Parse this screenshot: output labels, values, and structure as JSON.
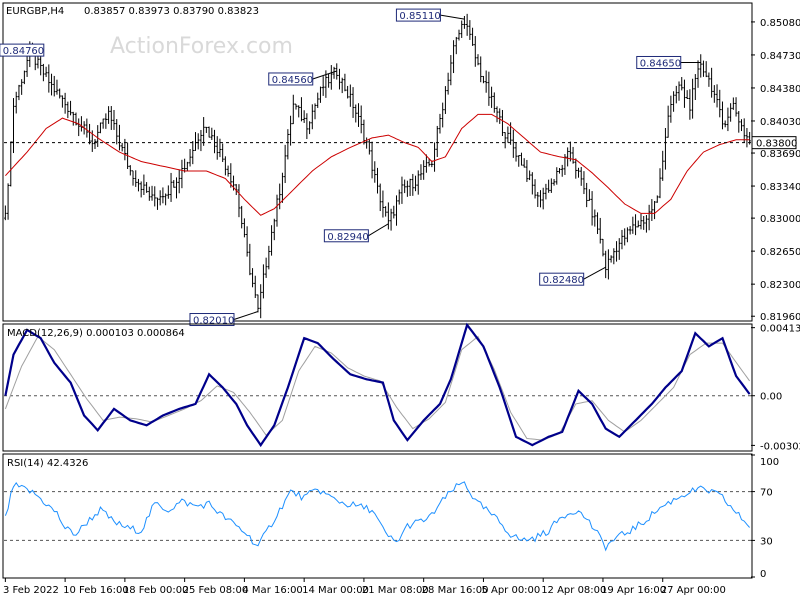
{
  "header": {
    "symbol_timeframe": "EURGBP,H4",
    "ohlc": "0.83857 0.83973 0.83790 0.83823",
    "watermark": "ActionForex.com"
  },
  "colors": {
    "price_bars": "#000000",
    "moving_average": "#cc0000",
    "macd_line": "#00008b",
    "macd_signal": "#a0a0a0",
    "rsi_line": "#1e90ff",
    "level_line": "#555555"
  },
  "chart_data": [
    {
      "type": "bar",
      "panel": "price",
      "title": "EURGBP,H4",
      "y_ticks": [
        "0.85080",
        "0.84730",
        "0.84380",
        "0.84030",
        "0.83690",
        "0.83340",
        "0.83000",
        "0.82650",
        "0.82300",
        "0.81960"
      ],
      "ylim": [
        0.8192,
        0.8527
      ],
      "current_price": "0.83800",
      "current_price_value": 0.838,
      "annotations": [
        {
          "label": "0.84760",
          "value": 0.8476
        },
        {
          "label": "0.84560",
          "value": 0.8456
        },
        {
          "label": "0.85110",
          "value": 0.8511
        },
        {
          "label": "0.84650",
          "value": 0.8465
        },
        {
          "label": "0.82940",
          "value": 0.8294
        },
        {
          "label": "0.82480",
          "value": 0.8248
        },
        {
          "label": "0.82010",
          "value": 0.8201
        }
      ],
      "close_path": [
        [
          0,
          0.83
        ],
        [
          3,
          0.842
        ],
        [
          9,
          0.8476
        ],
        [
          17,
          0.844
        ],
        [
          25,
          0.841
        ],
        [
          32,
          0.838
        ],
        [
          38,
          0.841
        ],
        [
          46,
          0.835
        ],
        [
          54,
          0.832
        ],
        [
          60,
          0.833
        ],
        [
          67,
          0.836
        ],
        [
          73,
          0.84
        ],
        [
          79,
          0.837
        ],
        [
          85,
          0.833
        ],
        [
          89,
          0.826
        ],
        [
          93,
          0.8201
        ],
        [
          97,
          0.827
        ],
        [
          101,
          0.833
        ],
        [
          106,
          0.842
        ],
        [
          111,
          0.84
        ],
        [
          117,
          0.844
        ],
        [
          122,
          0.8456
        ],
        [
          128,
          0.842
        ],
        [
          133,
          0.838
        ],
        [
          137,
          0.833
        ],
        [
          141,
          0.8294
        ],
        [
          146,
          0.833
        ],
        [
          151,
          0.834
        ],
        [
          157,
          0.836
        ],
        [
          161,
          0.842
        ],
        [
          165,
          0.848
        ],
        [
          169,
          0.8511
        ],
        [
          173,
          0.847
        ],
        [
          178,
          0.843
        ],
        [
          184,
          0.839
        ],
        [
          190,
          0.836
        ],
        [
          196,
          0.832
        ],
        [
          202,
          0.834
        ],
        [
          208,
          0.837
        ],
        [
          213,
          0.833
        ],
        [
          218,
          0.829
        ],
        [
          221,
          0.8248
        ],
        [
          225,
          0.827
        ],
        [
          231,
          0.829
        ],
        [
          236,
          0.83
        ],
        [
          240,
          0.832
        ],
        [
          244,
          0.841
        ],
        [
          248,
          0.844
        ],
        [
          252,
          0.842
        ],
        [
          256,
          0.8465
        ],
        [
          260,
          0.844
        ],
        [
          264,
          0.84
        ],
        [
          268,
          0.842
        ],
        [
          272,
          0.839
        ],
        [
          274,
          0.8382
        ]
      ],
      "moving_average": [
        [
          0,
          0.8345
        ],
        [
          8,
          0.837
        ],
        [
          15,
          0.8395
        ],
        [
          21,
          0.8406
        ],
        [
          27,
          0.84
        ],
        [
          34,
          0.8385
        ],
        [
          42,
          0.837
        ],
        [
          50,
          0.836
        ],
        [
          58,
          0.8355
        ],
        [
          66,
          0.835
        ],
        [
          74,
          0.835
        ],
        [
          81,
          0.8342
        ],
        [
          88,
          0.832
        ],
        [
          94,
          0.8303
        ],
        [
          99,
          0.831
        ],
        [
          106,
          0.833
        ],
        [
          113,
          0.835
        ],
        [
          120,
          0.8365
        ],
        [
          127,
          0.8375
        ],
        [
          135,
          0.8385
        ],
        [
          141,
          0.8388
        ],
        [
          147,
          0.838
        ],
        [
          152,
          0.8375
        ],
        [
          157,
          0.836
        ],
        [
          162,
          0.8365
        ],
        [
          168,
          0.8395
        ],
        [
          174,
          0.841
        ],
        [
          179,
          0.841
        ],
        [
          185,
          0.84
        ],
        [
          191,
          0.8385
        ],
        [
          197,
          0.837
        ],
        [
          204,
          0.8365
        ],
        [
          210,
          0.8362
        ],
        [
          216,
          0.8348
        ],
        [
          222,
          0.8332
        ],
        [
          228,
          0.8315
        ],
        [
          234,
          0.8305
        ],
        [
          239,
          0.8305
        ],
        [
          245,
          0.832
        ],
        [
          251,
          0.835
        ],
        [
          257,
          0.837
        ],
        [
          263,
          0.8378
        ],
        [
          269,
          0.8383
        ],
        [
          274,
          0.8383
        ]
      ]
    },
    {
      "type": "line",
      "panel": "macd",
      "title": "MACD(12,26,9) 0.000103 0.000864",
      "y_ticks": [
        "0.004138",
        "0.00",
        "-0.00302"
      ],
      "ylim": [
        -0.0033,
        0.0043
      ],
      "macd": [
        [
          0,
          0.0
        ],
        [
          3,
          0.0025
        ],
        [
          8,
          0.004
        ],
        [
          13,
          0.0035
        ],
        [
          18,
          0.002
        ],
        [
          24,
          0.0008
        ],
        [
          29,
          -0.0012
        ],
        [
          34,
          -0.0021
        ],
        [
          40,
          -0.0008
        ],
        [
          46,
          -0.0015
        ],
        [
          52,
          -0.0018
        ],
        [
          58,
          -0.0012
        ],
        [
          64,
          -0.0008
        ],
        [
          70,
          -0.0005
        ],
        [
          75,
          0.0013
        ],
        [
          80,
          0.0005
        ],
        [
          85,
          -0.0005
        ],
        [
          89,
          -0.0018
        ],
        [
          94,
          -0.003
        ],
        [
          99,
          -0.0018
        ],
        [
          104,
          0.0005
        ],
        [
          110,
          0.0035
        ],
        [
          115,
          0.0032
        ],
        [
          121,
          0.0022
        ],
        [
          127,
          0.0013
        ],
        [
          133,
          0.001
        ],
        [
          139,
          0.0008
        ],
        [
          143,
          -0.0015
        ],
        [
          148,
          -0.0027
        ],
        [
          154,
          -0.0015
        ],
        [
          160,
          -0.0005
        ],
        [
          164,
          0.001
        ],
        [
          170,
          0.0043
        ],
        [
          176,
          0.003
        ],
        [
          182,
          0.0005
        ],
        [
          188,
          -0.0025
        ],
        [
          194,
          -0.003
        ],
        [
          200,
          -0.0025
        ],
        [
          205,
          -0.0022
        ],
        [
          211,
          0.0003
        ],
        [
          216,
          -0.0005
        ],
        [
          221,
          -0.002
        ],
        [
          226,
          -0.0025
        ],
        [
          232,
          -0.0015
        ],
        [
          238,
          -0.0005
        ],
        [
          243,
          0.0005
        ],
        [
          249,
          0.0015
        ],
        [
          254,
          0.0038
        ],
        [
          259,
          0.003
        ],
        [
          264,
          0.0035
        ],
        [
          269,
          0.0012
        ],
        [
          274,
          0.0001
        ]
      ],
      "signal": [
        [
          0,
          -0.0008
        ],
        [
          6,
          0.0018
        ],
        [
          12,
          0.0036
        ],
        [
          18,
          0.0028
        ],
        [
          24,
          0.0013
        ],
        [
          30,
          -0.0002
        ],
        [
          36,
          -0.0015
        ],
        [
          42,
          -0.0013
        ],
        [
          48,
          -0.0014
        ],
        [
          54,
          -0.0016
        ],
        [
          60,
          -0.0012
        ],
        [
          66,
          -0.0008
        ],
        [
          72,
          -0.0003
        ],
        [
          78,
          0.0006
        ],
        [
          84,
          0.0002
        ],
        [
          90,
          -0.001
        ],
        [
          96,
          -0.0024
        ],
        [
          102,
          -0.0015
        ],
        [
          108,
          0.0015
        ],
        [
          114,
          0.003
        ],
        [
          120,
          0.0026
        ],
        [
          126,
          0.0017
        ],
        [
          132,
          0.0012
        ],
        [
          138,
          0.0009
        ],
        [
          144,
          -0.0007
        ],
        [
          150,
          -0.002
        ],
        [
          156,
          -0.0014
        ],
        [
          162,
          -0.0004
        ],
        [
          168,
          0.0028
        ],
        [
          174,
          0.0036
        ],
        [
          180,
          0.0016
        ],
        [
          186,
          -0.001
        ],
        [
          192,
          -0.0026
        ],
        [
          198,
          -0.0027
        ],
        [
          204,
          -0.0023
        ],
        [
          210,
          -0.0005
        ],
        [
          216,
          -0.0003
        ],
        [
          222,
          -0.0015
        ],
        [
          228,
          -0.0022
        ],
        [
          234,
          -0.0015
        ],
        [
          240,
          -0.0005
        ],
        [
          246,
          0.0005
        ],
        [
          252,
          0.0025
        ],
        [
          258,
          0.0032
        ],
        [
          264,
          0.0032
        ],
        [
          270,
          0.0018
        ],
        [
          274,
          0.0009
        ]
      ]
    },
    {
      "type": "line",
      "panel": "rsi",
      "title": "RSI(14) 42.4326",
      "y_ticks": [
        "100",
        "70",
        "30",
        "0"
      ],
      "ylim": [
        0,
        100
      ],
      "levels": [
        70,
        30
      ],
      "rsi": [
        [
          0,
          48
        ],
        [
          3,
          75
        ],
        [
          7,
          72
        ],
        [
          11,
          68
        ],
        [
          15,
          60
        ],
        [
          19,
          52
        ],
        [
          22,
          40
        ],
        [
          26,
          35
        ],
        [
          30,
          45
        ],
        [
          35,
          55
        ],
        [
          40,
          45
        ],
        [
          45,
          40
        ],
        [
          50,
          38
        ],
        [
          55,
          60
        ],
        [
          60,
          55
        ],
        [
          65,
          62
        ],
        [
          70,
          58
        ],
        [
          75,
          60
        ],
        [
          80,
          50
        ],
        [
          85,
          42
        ],
        [
          89,
          35
        ],
        [
          93,
          25
        ],
        [
          97,
          40
        ],
        [
          101,
          55
        ],
        [
          105,
          70
        ],
        [
          110,
          65
        ],
        [
          115,
          72
        ],
        [
          120,
          65
        ],
        [
          125,
          60
        ],
        [
          130,
          58
        ],
        [
          135,
          55
        ],
        [
          140,
          35
        ],
        [
          144,
          28
        ],
        [
          148,
          42
        ],
        [
          152,
          45
        ],
        [
          156,
          48
        ],
        [
          160,
          60
        ],
        [
          165,
          72
        ],
        [
          169,
          78
        ],
        [
          173,
          62
        ],
        [
          177,
          55
        ],
        [
          182,
          45
        ],
        [
          186,
          35
        ],
        [
          190,
          30
        ],
        [
          195,
          32
        ],
        [
          200,
          38
        ],
        [
          205,
          50
        ],
        [
          210,
          55
        ],
        [
          214,
          48
        ],
        [
          218,
          35
        ],
        [
          221,
          25
        ],
        [
          225,
          32
        ],
        [
          230,
          38
        ],
        [
          235,
          45
        ],
        [
          240,
          55
        ],
        [
          245,
          62
        ],
        [
          250,
          68
        ],
        [
          255,
          72
        ],
        [
          260,
          70
        ],
        [
          264,
          65
        ],
        [
          268,
          55
        ],
        [
          271,
          48
        ],
        [
          274,
          42
        ]
      ]
    }
  ],
  "x_axis": {
    "labels": [
      "3 Feb 2022",
      "10 Feb 16:00",
      "18 Feb 00:00",
      "25 Feb 08:00",
      "4 Mar 16:00",
      "14 Mar 00:00",
      "21 Mar 08:00",
      "28 Mar 16:00",
      "5 Apr 00:00",
      "12 Apr 08:00",
      "19 Apr 16:00",
      "27 Apr 00:00"
    ],
    "bar_index": [
      0,
      22,
      44,
      66,
      88,
      110,
      132,
      154,
      176,
      198,
      220,
      242
    ]
  }
}
